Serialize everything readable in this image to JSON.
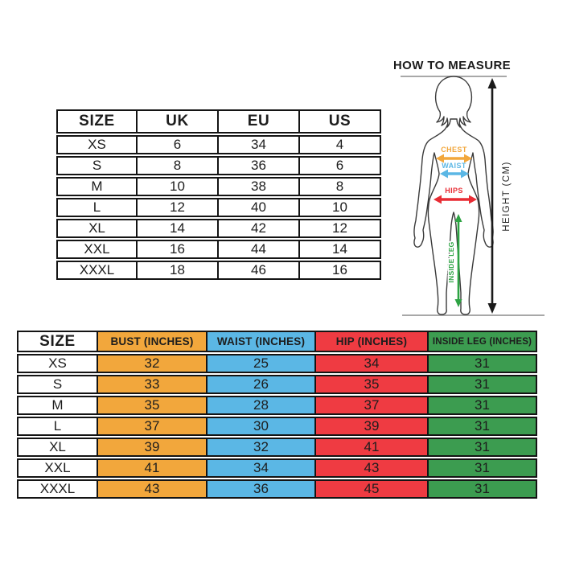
{
  "page": {
    "background": "#ffffff",
    "text_color": "#1d1d1d",
    "border_color": "#141414"
  },
  "conversion_table": {
    "headers": [
      "SIZE",
      "UK",
      "EU",
      "US"
    ],
    "rows": [
      [
        "XS",
        "6",
        "34",
        "4"
      ],
      [
        "S",
        "8",
        "36",
        "6"
      ],
      [
        "M",
        "10",
        "38",
        "8"
      ],
      [
        "L",
        "12",
        "40",
        "10"
      ],
      [
        "XL",
        "14",
        "42",
        "12"
      ],
      [
        "XXL",
        "16",
        "44",
        "14"
      ],
      [
        "XXXL",
        "18",
        "46",
        "16"
      ]
    ]
  },
  "measurements_table": {
    "headers": [
      {
        "label": "SIZE"
      },
      {
        "label": "BUST (INCHES)",
        "color": "#F2A73C"
      },
      {
        "label": "WAIST (INCHES)",
        "color": "#5BB7E5"
      },
      {
        "label": "HIP (INCHES)",
        "color": "#EF3B42"
      },
      {
        "label": "INSIDE LEG (INCHES)",
        "color": "#3C9C50"
      }
    ],
    "rows": [
      [
        "XS",
        "32",
        "25",
        "34",
        "31"
      ],
      [
        "S",
        "33",
        "26",
        "35",
        "31"
      ],
      [
        "M",
        "35",
        "28",
        "37",
        "31"
      ],
      [
        "L",
        "37",
        "30",
        "39",
        "31"
      ],
      [
        "XL",
        "39",
        "32",
        "41",
        "31"
      ],
      [
        "XXL",
        "41",
        "34",
        "43",
        "31"
      ],
      [
        "XXXL",
        "43",
        "36",
        "45",
        "31"
      ]
    ]
  },
  "measure_diagram": {
    "title": "HOW TO MEASURE",
    "labels": {
      "chest": "CHEST",
      "waist": "WAIST",
      "hips": "HIPS",
      "inside_leg": "INSIDE LEG",
      "height": "HEIGHT (CM)"
    },
    "colors": {
      "chest": "#F2A73C",
      "waist": "#5BB7E5",
      "hips": "#E82C34",
      "inside_leg": "#2DA343",
      "height": "#1a1a1a",
      "guide_line": "#8c8c8c",
      "figure_outline": "#3a3a3a"
    }
  }
}
